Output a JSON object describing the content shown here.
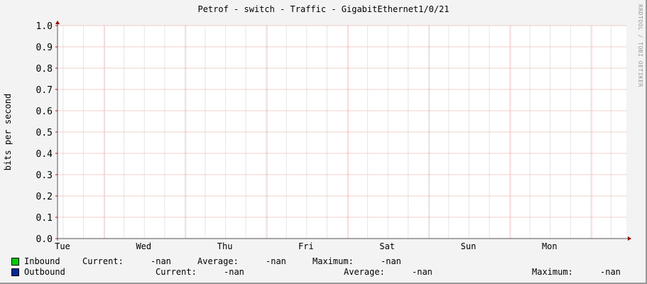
{
  "chart_data": {
    "type": "line",
    "title": "Petrof - switch - Traffic - GigabitEthernet1/0/21",
    "ylabel": "bits per second",
    "xlabel": "",
    "ylim": [
      0,
      1.0
    ],
    "yticks": [
      "0.0",
      "0.1",
      "0.2",
      "0.3",
      "0.4",
      "0.5",
      "0.6",
      "0.7",
      "0.8",
      "0.9",
      "1.0"
    ],
    "xticks": [
      "Tue",
      "Wed",
      "Thu",
      "Fri",
      "Sat",
      "Sun",
      "Mon"
    ],
    "grid": true,
    "series": [
      {
        "name": "Inbound",
        "color": "#00cc00",
        "values": []
      },
      {
        "name": "Outbound",
        "color": "#002a97",
        "values": []
      }
    ]
  },
  "watermark": "RRDTOOL / TOBI OETIKER",
  "legend": {
    "inbound": {
      "label": "Inbound",
      "current_label": "Current:",
      "current": "-nan",
      "average_label": "Average:",
      "average": "-nan",
      "maximum_label": "Maximum:",
      "maximum": "-nan"
    },
    "outbound": {
      "label": "Outbound",
      "current_label": "Current:",
      "current": "-nan",
      "average_label": "Average:",
      "average": "-nan",
      "maximum_label": "Maximum:",
      "maximum": "-nan"
    }
  }
}
